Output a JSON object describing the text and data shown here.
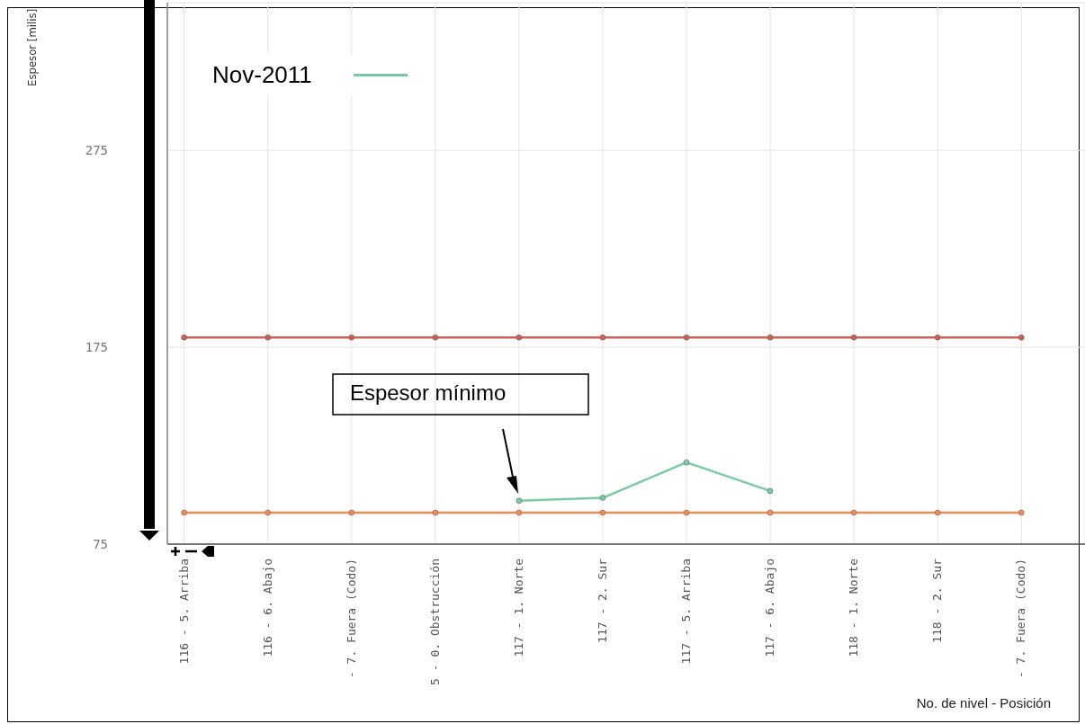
{
  "chart_data": {
    "type": "line",
    "ylabel": "Espesor [milis]",
    "xlabel": "No. de nivel - Posición",
    "categories": [
      "116 - 5. Arriba",
      "116 - 6. Abajo",
      "- 7. Fuera (Codo)",
      "5 - 0. Obstrucción",
      "117 - 1. Norte",
      "117 - 2. Sur",
      "117 - 5. Arriba",
      "117 - 6. Abajo",
      "118 - 1. Norte",
      "118 - 2. Sur",
      "- 7. Fuera (Codo)"
    ],
    "series": [
      {
        "color": "#c9625a",
        "values": [
          180,
          180,
          180,
          180,
          180,
          180,
          180,
          180,
          180,
          180,
          180
        ]
      },
      {
        "color": "#f08c5a",
        "values": [
          91,
          91,
          91,
          91,
          91,
          91,
          91,
          91,
          91,
          91,
          91
        ]
      },
      {
        "name": "Nov-2011",
        "color": "#7cc9a6",
        "values": [
          null,
          null,
          null,
          null,
          97,
          98.5,
          116.5,
          102,
          null,
          null,
          null
        ]
      }
    ],
    "ylim": [
      75,
      350
    ],
    "yticks": [
      75,
      175,
      275
    ],
    "grid": true,
    "legend": "top left",
    "marker": "circle",
    "line_style": "solid",
    "annotations": [
      "Espesor mínimo"
    ]
  }
}
